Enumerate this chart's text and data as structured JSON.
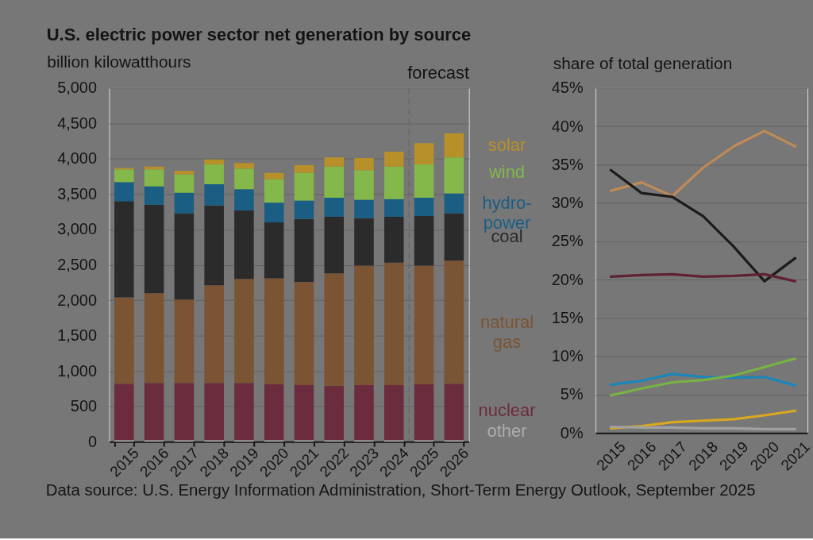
{
  "chart_data": [
    {
      "type": "bar",
      "title": "U.S. electric power sector net generation by source",
      "ylabel": "billion kilowatthours",
      "categories": [
        "2015",
        "2016",
        "2017",
        "2018",
        "2019",
        "2020",
        "2021",
        "2022",
        "2023",
        "2024",
        "2025",
        "2026"
      ],
      "ylim": [
        0,
        5000
      ],
      "yticks": [
        {
          "value": 0,
          "label": "0"
        },
        {
          "value": 500,
          "label": "500"
        },
        {
          "value": 1000,
          "label": "1,000"
        },
        {
          "value": 1500,
          "label": "1,500"
        },
        {
          "value": 2000,
          "label": "2,000"
        },
        {
          "value": 2500,
          "label": "2,500"
        },
        {
          "value": 3000,
          "label": "3,000"
        },
        {
          "value": 3500,
          "label": "3,500"
        },
        {
          "value": 4000,
          "label": "4,000"
        },
        {
          "value": 4500,
          "label": "4,500"
        },
        {
          "value": 5000,
          "label": "5,000"
        }
      ],
      "stacked": true,
      "grid": "y",
      "legend": "right",
      "series": [
        {
          "name": "other",
          "color": "#adadad",
          "values": [
            20,
            20,
            20,
            20,
            20,
            20,
            20,
            20,
            20,
            20,
            20,
            20
          ]
        },
        {
          "name": "nuclear",
          "color": "#6b2c3d",
          "values": [
            800,
            810,
            810,
            810,
            810,
            790,
            780,
            770,
            780,
            780,
            790,
            800
          ]
        },
        {
          "name": "natural\ngas",
          "color": "#7a5433",
          "values": [
            1220,
            1270,
            1180,
            1380,
            1470,
            1500,
            1460,
            1590,
            1690,
            1730,
            1680,
            1740
          ]
        },
        {
          "name": "coal",
          "color": "#2b2b2b",
          "values": [
            1360,
            1250,
            1220,
            1130,
            970,
            790,
            890,
            800,
            670,
            650,
            700,
            670
          ]
        },
        {
          "name": "hydro-\npower",
          "color": "#1b5e84",
          "values": [
            270,
            260,
            290,
            300,
            300,
            280,
            260,
            270,
            260,
            250,
            260,
            280
          ]
        },
        {
          "name": "wind",
          "color": "#84b84a",
          "values": [
            180,
            240,
            260,
            280,
            290,
            330,
            390,
            440,
            420,
            460,
            470,
            510
          ]
        },
        {
          "name": "solar",
          "color": "#b8902a",
          "values": [
            20,
            40,
            50,
            70,
            80,
            90,
            110,
            130,
            170,
            210,
            300,
            340
          ]
        }
      ],
      "ref_lines": [
        {
          "axis": "x",
          "value": "2025",
          "label": "forecast",
          "line_style": "dashed",
          "color": "#666666"
        }
      ],
      "annotations": [
        "Data source: U.S. Energy Information Administration, Short-Term Energy Outlook, September 2025"
      ]
    },
    {
      "type": "line",
      "ylabel": "share of total generation",
      "x": [
        2015,
        2016,
        2017,
        2018,
        2019,
        2020,
        2021
      ],
      "xlim": [
        2014.5,
        2021.4
      ],
      "xticks": [
        2015,
        2016,
        2017,
        2018,
        2019,
        2020,
        2021
      ],
      "ylim": [
        0,
        45
      ],
      "yticks": [
        {
          "value": 0,
          "label": "0%"
        },
        {
          "value": 5,
          "label": "5%"
        },
        {
          "value": 10,
          "label": "10%"
        },
        {
          "value": 15,
          "label": "15%"
        },
        {
          "value": 20,
          "label": "20%"
        },
        {
          "value": 25,
          "label": "25%"
        },
        {
          "value": 30,
          "label": "30%"
        },
        {
          "value": 35,
          "label": "35%"
        },
        {
          "value": 40,
          "label": "40%"
        },
        {
          "value": 45,
          "label": "45%"
        }
      ],
      "grid": "y",
      "series": [
        {
          "color": "#c08a58",
          "values": [
            31.6,
            32.7,
            30.9,
            34.6,
            37.4,
            39.4,
            37.4
          ]
        },
        {
          "color": "#1c1c1c",
          "values": [
            34.3,
            31.3,
            30.8,
            28.3,
            24.3,
            19.8,
            22.8
          ]
        },
        {
          "color": "#5e2232",
          "values": [
            20.4,
            20.6,
            20.7,
            20.4,
            20.5,
            20.7,
            19.8
          ]
        },
        {
          "color": "#1a86ba",
          "values": [
            6.3,
            6.8,
            7.7,
            7.3,
            7.2,
            7.3,
            6.2
          ]
        },
        {
          "color": "#78b245",
          "values": [
            4.9,
            5.8,
            6.6,
            6.9,
            7.5,
            8.6,
            9.7
          ]
        },
        {
          "color": "#d9a821",
          "values": [
            0.6,
            0.9,
            1.4,
            1.6,
            1.8,
            2.3,
            2.9
          ]
        },
        {
          "color": "#a0a0a0",
          "values": [
            0.8,
            0.7,
            0.7,
            0.6,
            0.6,
            0.5,
            0.5
          ]
        }
      ]
    }
  ]
}
